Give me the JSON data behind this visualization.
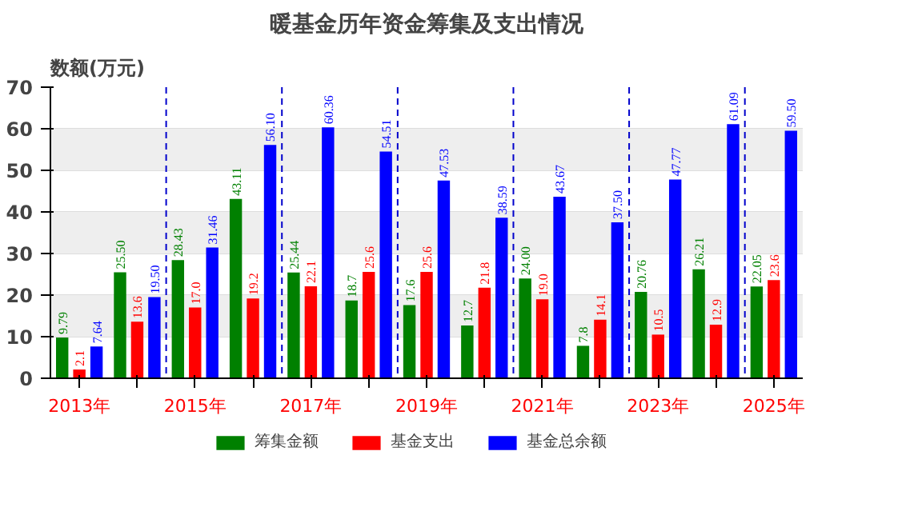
{
  "chart_data": {
    "type": "bar",
    "title": "暖基金历年资金筹集及支出情况",
    "ylabel": "数额(万元)",
    "categories": [
      "2013年",
      null,
      "2015年",
      null,
      "2017年",
      null,
      "2019年",
      null,
      "2021年",
      null,
      "2023年",
      null,
      "2025年"
    ],
    "series": [
      {
        "name": "筹集金额",
        "color": "#008000",
        "values": [
          9.79,
          25.5,
          28.43,
          43.11,
          25.44,
          18.7,
          17.6,
          12.7,
          24.0,
          7.8,
          20.76,
          26.21,
          22.05
        ],
        "value_labels": [
          "9.79",
          "25.50",
          "28.43",
          "43.11",
          "25.44",
          "18.7",
          "17.6",
          "12.7",
          "24.00",
          "7.8",
          "20.76",
          "26.21",
          "22.05"
        ]
      },
      {
        "name": "基金支出",
        "color": "#ff0000",
        "values": [
          2.1,
          13.6,
          17.0,
          19.2,
          22.1,
          25.6,
          25.6,
          21.8,
          19.0,
          14.1,
          10.5,
          12.9,
          23.6
        ],
        "value_labels": [
          "2.1",
          "13.6",
          "17.0",
          "19.2",
          "22.1",
          "25.6",
          "25.6",
          "21.8",
          "19.0",
          "14.1",
          "10.5",
          "12.9",
          "23.6"
        ]
      },
      {
        "name": "基金总余额",
        "color": "#0000ff",
        "values": [
          7.64,
          19.5,
          31.46,
          56.1,
          60.36,
          54.51,
          47.53,
          38.59,
          43.67,
          37.5,
          47.77,
          61.09,
          59.5
        ],
        "value_labels": [
          "7.64",
          "19.50",
          "31.46",
          "56.10",
          "60.36",
          "54.51",
          "47.53",
          "38.59",
          "43.67",
          "37.50",
          "47.77",
          "61.09",
          "59.50"
        ]
      }
    ],
    "ylim": [
      0,
      70
    ],
    "yticks": [
      0,
      10,
      20,
      30,
      40,
      50,
      60,
      70
    ],
    "grid": true,
    "legend": "bottom"
  }
}
